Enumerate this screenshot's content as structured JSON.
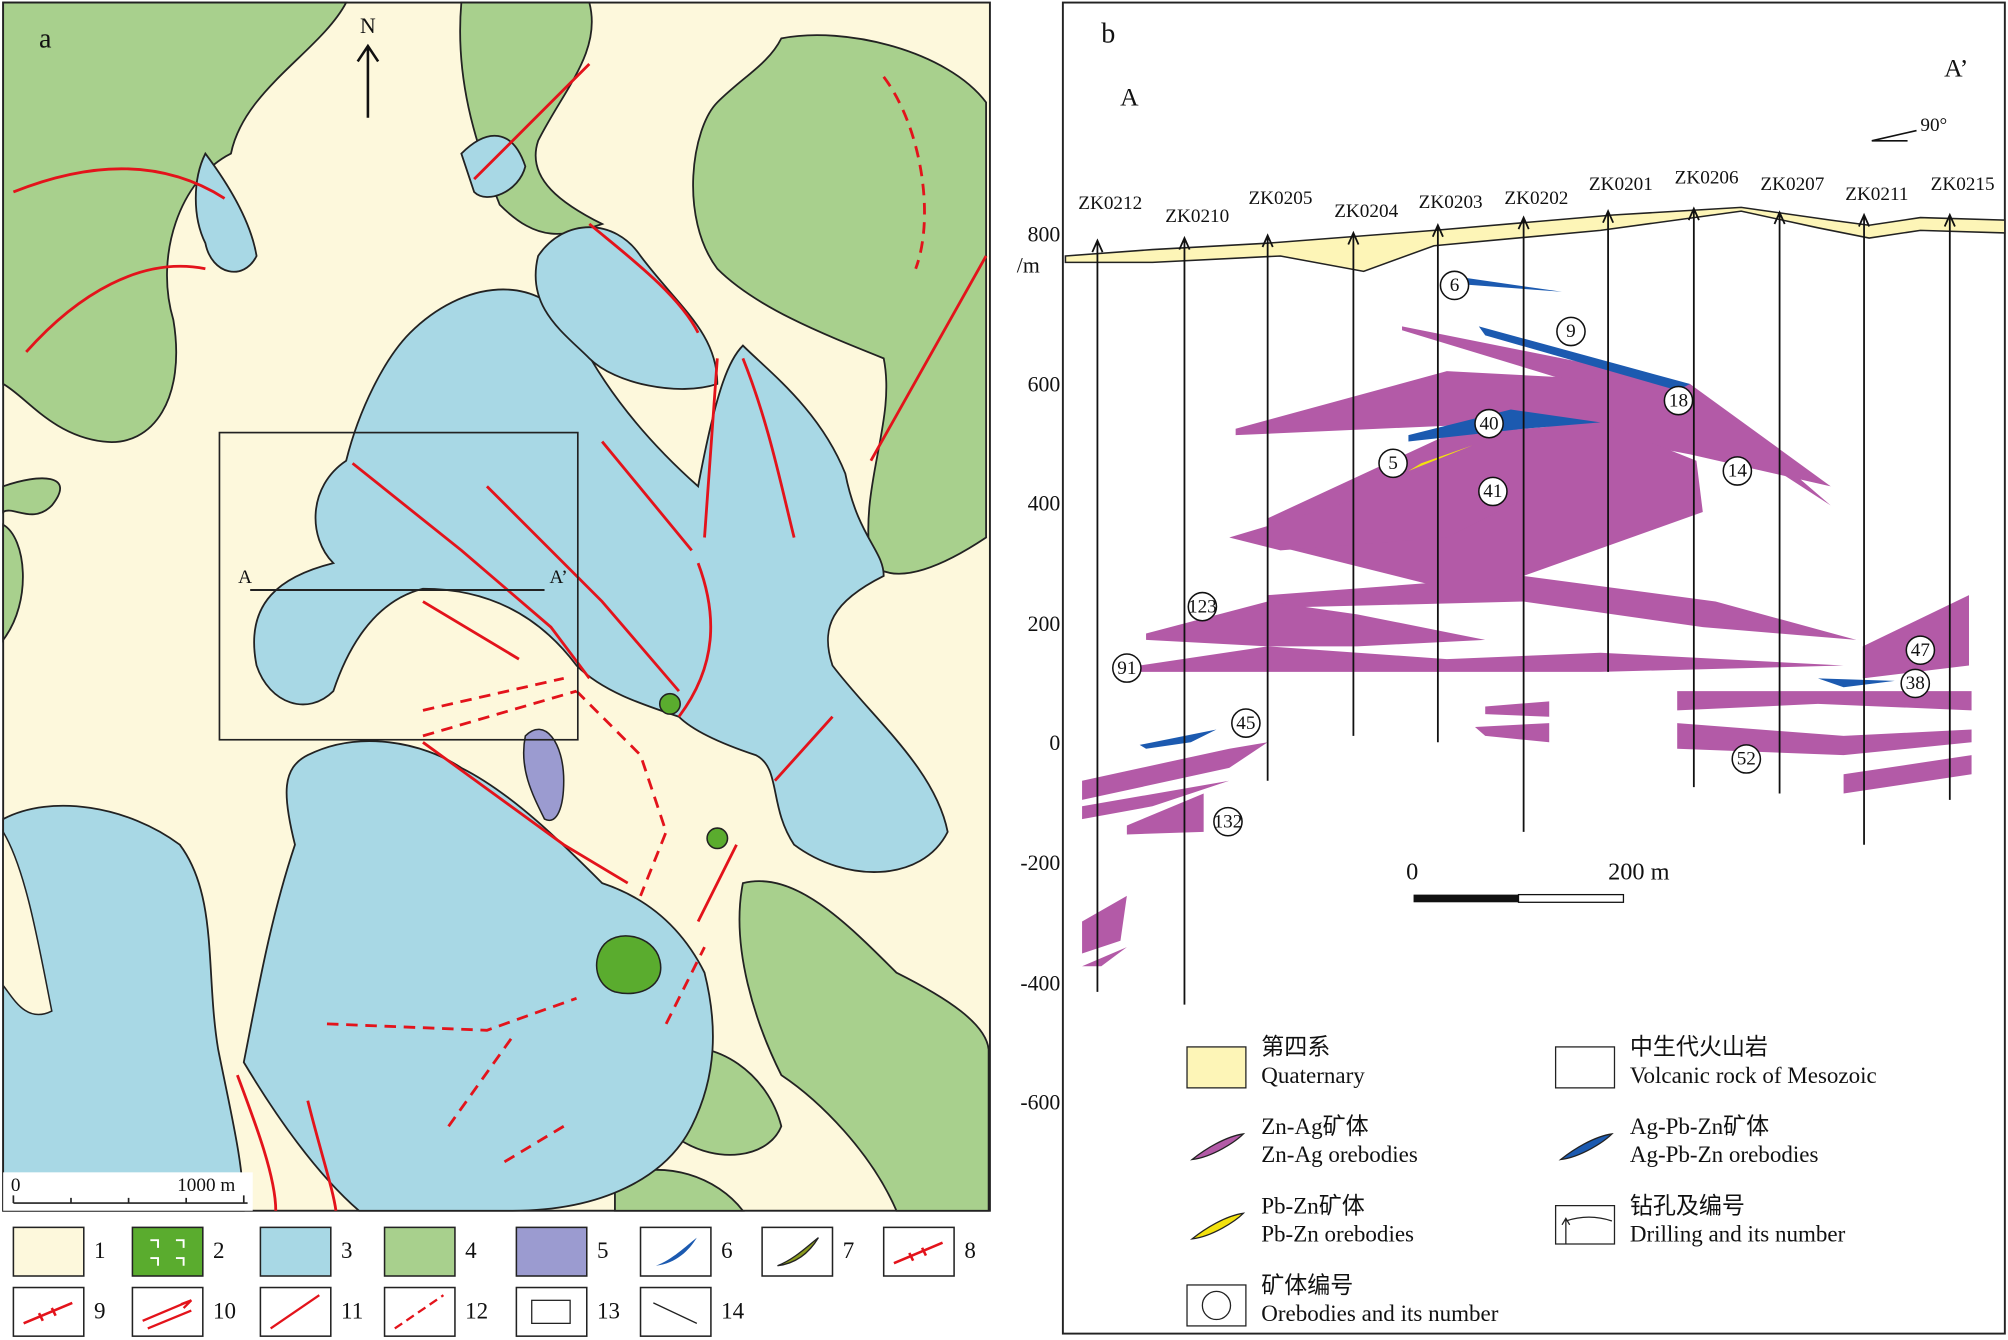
{
  "panel_a": {
    "label": "a",
    "north": "N",
    "section_start": "A",
    "section_end": "A’",
    "scale_start": "0",
    "scale_end": "1000 m",
    "legend": [
      "1",
      "2",
      "3",
      "4",
      "5",
      "6",
      "7",
      "8",
      "9",
      "10",
      "11",
      "12",
      "13",
      "14"
    ]
  },
  "panel_b": {
    "label": "b",
    "section_start": "A",
    "section_end": "A’",
    "bearing": "90°",
    "elevation_unit": "/m",
    "elevations": [
      "800",
      "600",
      "400",
      "200",
      "0",
      "-200",
      "-400",
      "-600"
    ],
    "drillholes": [
      "ZK0212",
      "ZK0210",
      "ZK0205",
      "ZK0204",
      "ZK0203",
      "ZK0202",
      "ZK0201",
      "ZK0206",
      "ZK0207",
      "ZK0211",
      "ZK0215"
    ],
    "orebodies": [
      "6",
      "9",
      "18",
      "40",
      "5",
      "41",
      "14",
      "123",
      "91",
      "47",
      "38",
      "45",
      "52",
      "132"
    ],
    "scale_start": "0",
    "scale_end": "200 m",
    "legend": [
      {
        "zh": "第四系",
        "en": "Quaternary"
      },
      {
        "zh": "中生代火山岩",
        "en": "Volcanic rock of Mesozoic"
      },
      {
        "zh": "Zn-Ag矿体",
        "en": "Zn-Ag orebodies"
      },
      {
        "zh": "Ag-Pb-Zn矿体",
        "en": "Ag-Pb-Zn orebodies"
      },
      {
        "zh": "Pb-Zn矿体",
        "en": "Pb-Zn orebodies"
      },
      {
        "zh": "钻孔及编号",
        "en": "Drilling and its number"
      },
      {
        "zh": "矿体编号",
        "en": "Orebodies and its number"
      }
    ]
  }
}
